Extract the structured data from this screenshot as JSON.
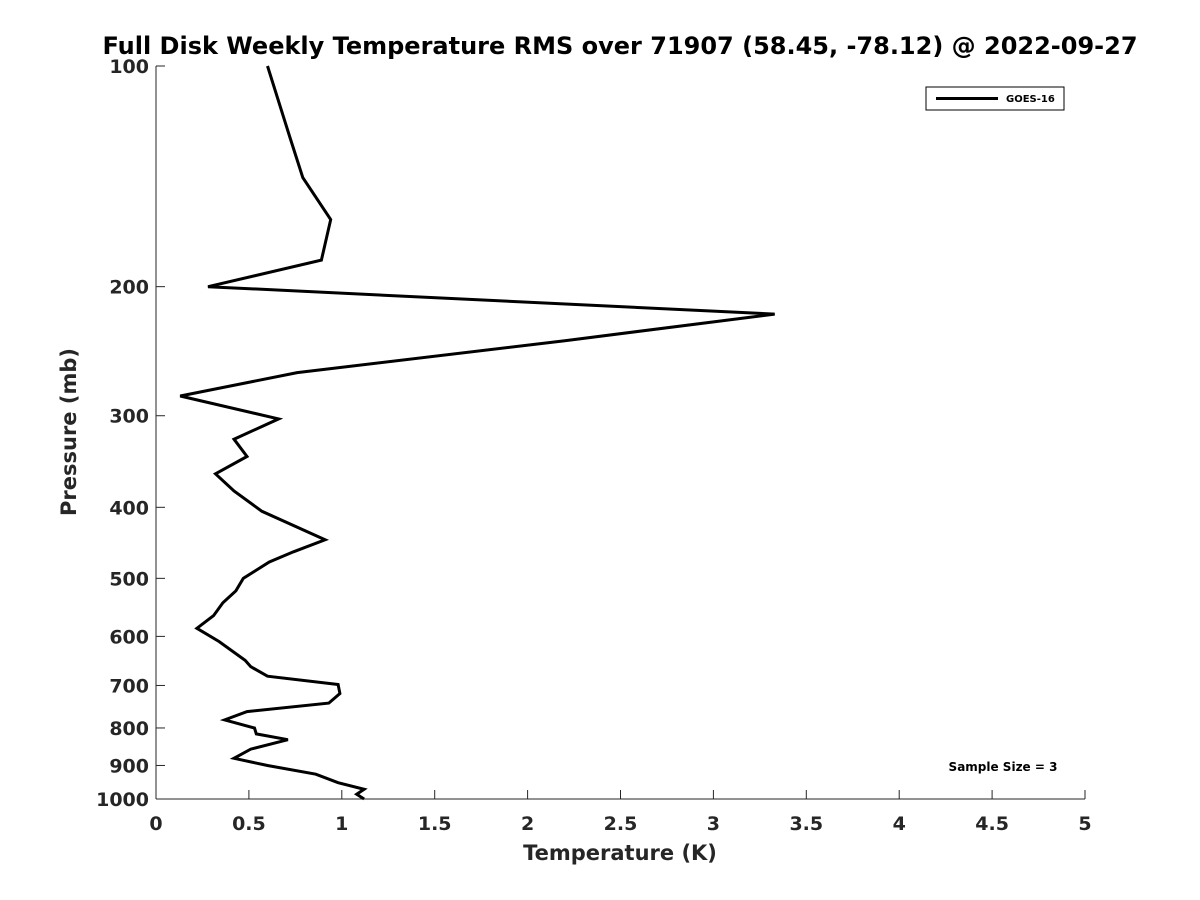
{
  "chart_data": {
    "type": "line",
    "title": "Full Disk Weekly Temperature RMS over 71907 (58.45, -78.12) @ 2022-09-27",
    "xlabel": "Temperature (K)",
    "ylabel": "Pressure (mb)",
    "xlim": [
      0,
      5
    ],
    "ylim": [
      100,
      1000
    ],
    "y_scale": "log",
    "y_direction": "reversed",
    "x_ticks": [
      "0",
      "0.5",
      "1",
      "1.5",
      "2",
      "2.5",
      "3",
      "3.5",
      "4",
      "4.5",
      "5"
    ],
    "y_ticks": [
      "100",
      "200",
      "300",
      "400",
      "500",
      "600",
      "700",
      "800",
      "900",
      "1000"
    ],
    "grid": false,
    "legend_position": "top-right",
    "line_color": "#000000",
    "series": [
      {
        "name": "GOES-16",
        "points": [
          [
            0.6,
            100
          ],
          [
            0.72,
            125
          ],
          [
            0.79,
            142
          ],
          [
            0.94,
            162
          ],
          [
            0.89,
            184
          ],
          [
            0.28,
            200
          ],
          [
            3.33,
            218
          ],
          [
            2.2,
            237
          ],
          [
            0.76,
            262
          ],
          [
            0.13,
            282
          ],
          [
            0.66,
            303
          ],
          [
            0.42,
            323
          ],
          [
            0.49,
            341
          ],
          [
            0.32,
            360
          ],
          [
            0.42,
            380
          ],
          [
            0.57,
            405
          ],
          [
            0.91,
            443
          ],
          [
            0.74,
            460
          ],
          [
            0.61,
            475
          ],
          [
            0.47,
            500
          ],
          [
            0.43,
            520
          ],
          [
            0.36,
            540
          ],
          [
            0.31,
            562
          ],
          [
            0.22,
            585
          ],
          [
            0.34,
            610
          ],
          [
            0.48,
            647
          ],
          [
            0.51,
            660
          ],
          [
            0.6,
            680
          ],
          [
            0.98,
            698
          ],
          [
            0.99,
            718
          ],
          [
            0.93,
            740
          ],
          [
            0.49,
            760
          ],
          [
            0.37,
            780
          ],
          [
            0.53,
            800
          ],
          [
            0.54,
            815
          ],
          [
            0.71,
            830
          ],
          [
            0.51,
            855
          ],
          [
            0.42,
            880
          ],
          [
            0.6,
            900
          ],
          [
            0.86,
            925
          ],
          [
            0.98,
            950
          ],
          [
            1.12,
            970
          ],
          [
            1.08,
            985
          ],
          [
            1.12,
            1000
          ]
        ]
      }
    ],
    "annotation": "Sample Size = 3"
  }
}
